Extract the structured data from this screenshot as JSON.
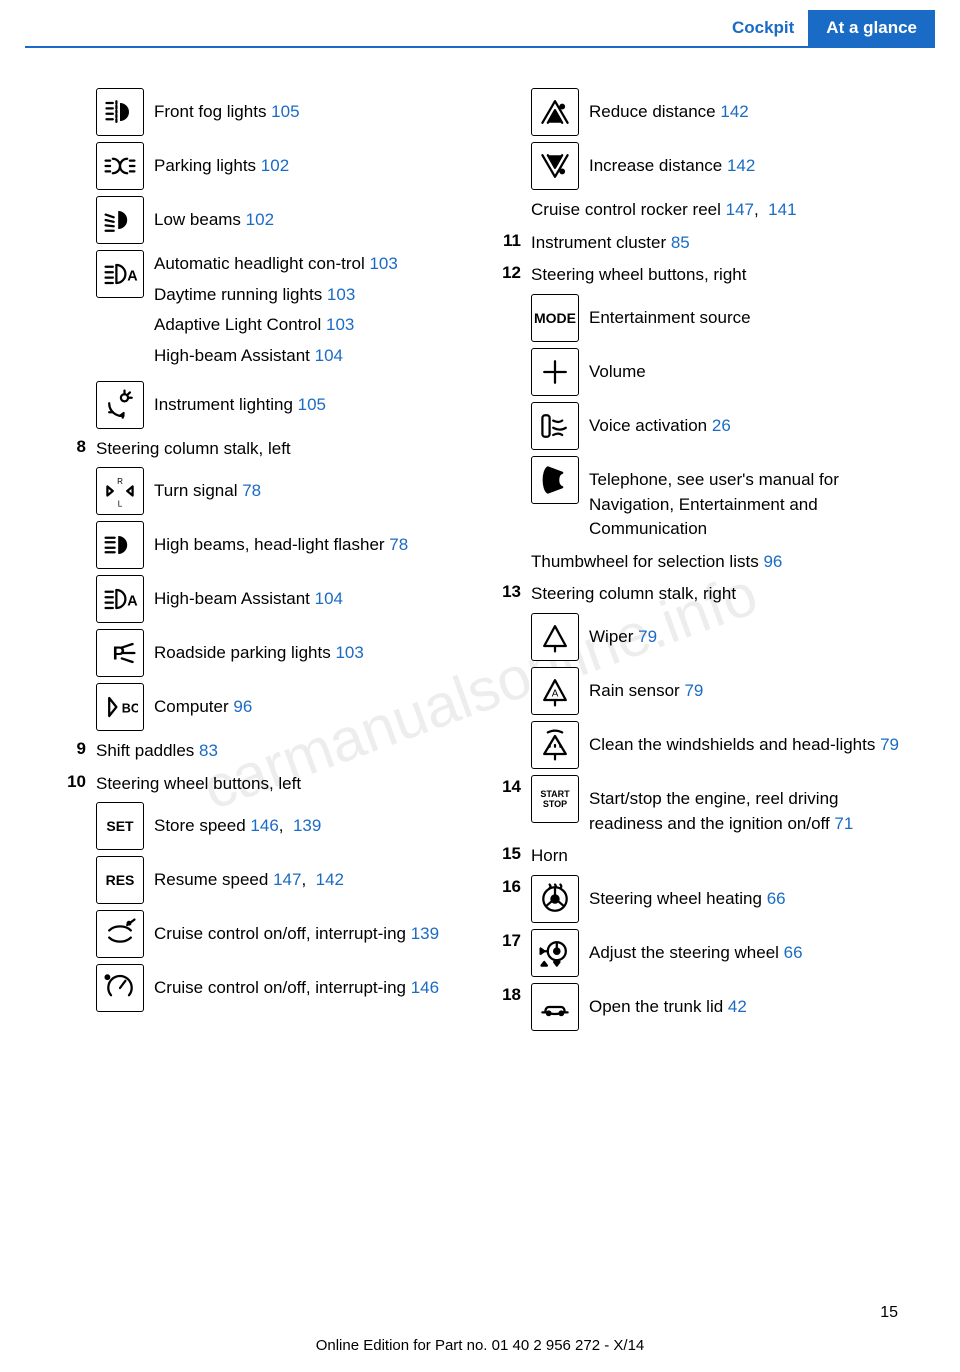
{
  "header": {
    "section": "Cockpit",
    "chapter": "At a glance"
  },
  "watermark": "carmanualsonline.info",
  "pagenum": "15",
  "footer": "Online Edition for Part no. 01 40 2 956 272 - X/14",
  "link_color": "#1a6bc5",
  "left": [
    {
      "icon": "fog",
      "text": "Front fog lights  ",
      "refs": [
        "105"
      ]
    },
    {
      "icon": "parking",
      "text": "Parking lights  ",
      "refs": [
        "102"
      ]
    },
    {
      "icon": "lowbeam",
      "text": "Low beams  ",
      "refs": [
        "102"
      ]
    },
    {
      "icon": "autoA",
      "lines": [
        {
          "text": "Automatic headlight con-trol  ",
          "refs": [
            "103"
          ]
        },
        {
          "text": "Daytime running lights  ",
          "refs": [
            "103"
          ]
        },
        {
          "text": "Adaptive Light Control  ",
          "refs": [
            "103"
          ]
        },
        {
          "text": "High-beam Assistant  ",
          "refs": [
            "104"
          ]
        }
      ]
    },
    {
      "icon": "instlight",
      "text": "Instrument lighting  ",
      "refs": [
        "105"
      ]
    },
    {
      "num": "8",
      "text": "Steering column stalk, left"
    },
    {
      "icon": "turnsig",
      "text": "Turn signal  ",
      "refs": [
        "78"
      ]
    },
    {
      "icon": "highbeam",
      "text": "High beams, head-light flasher  ",
      "refs": [
        "78"
      ]
    },
    {
      "icon": "autoA",
      "text": "High-beam Assistant  ",
      "refs": [
        "104"
      ]
    },
    {
      "icon": "roadpark",
      "text": "Roadside parking lights  ",
      "refs": [
        "103"
      ]
    },
    {
      "icon": "bc",
      "text": "Computer  ",
      "refs": [
        "96"
      ]
    },
    {
      "num": "9",
      "text": "Shift paddles  ",
      "refs": [
        "83"
      ]
    },
    {
      "num": "10",
      "text": "Steering wheel buttons, left"
    },
    {
      "icon": "set",
      "text": "Store speed  ",
      "refs": [
        "146",
        "139"
      ]
    },
    {
      "icon": "res",
      "text": "Resume speed  ",
      "refs": [
        "147",
        "142"
      ]
    },
    {
      "icon": "ccinter",
      "text": "Cruise control on/off, interrupt-ing  ",
      "refs": [
        "139"
      ]
    },
    {
      "icon": "ccinter2",
      "text": "Cruise control on/off, interrupt-ing  ",
      "refs": [
        "146"
      ]
    }
  ],
  "right": [
    {
      "icon": "reduce",
      "text": "Reduce distance  ",
      "refs": [
        "142"
      ]
    },
    {
      "icon": "increase",
      "text": "Increase distance  ",
      "refs": [
        "142"
      ]
    },
    {
      "inset": true,
      "text": "Cruise control rocker reel  ",
      "refs": [
        "147",
        "141"
      ]
    },
    {
      "num": "11",
      "text": "Instrument cluster  ",
      "refs": [
        "85"
      ]
    },
    {
      "num": "12",
      "text": "Steering wheel buttons, right"
    },
    {
      "icon": "mode",
      "text": "Entertainment source"
    },
    {
      "icon": "vol",
      "text": "Volume"
    },
    {
      "icon": "voice",
      "text": "Voice activation  ",
      "refs": [
        "26"
      ]
    },
    {
      "icon": "phone",
      "text": "Telephone, see user's manual for Navigation, Entertainment and Communication"
    },
    {
      "inset": true,
      "text": "Thumbwheel for selection lists  ",
      "refs": [
        "96"
      ]
    },
    {
      "num": "13",
      "text": "Steering column stalk, right"
    },
    {
      "icon": "wiper",
      "text": "Wiper  ",
      "refs": [
        "79"
      ]
    },
    {
      "icon": "rain",
      "text": "Rain sensor  ",
      "refs": [
        "79"
      ]
    },
    {
      "icon": "wash",
      "text": "Clean the windshields and head-lights  ",
      "refs": [
        "79"
      ]
    },
    {
      "num": "14",
      "icon": "startstop",
      "text": "Start/stop the engine, reel driving readiness and the ignition on/off  ",
      "refs": [
        "71"
      ]
    },
    {
      "num": "15",
      "text": "Horn"
    },
    {
      "num": "16",
      "icon": "steerheat",
      "text": "Steering wheel heating  ",
      "refs": [
        "66"
      ]
    },
    {
      "num": "17",
      "icon": "steeradj",
      "text": "Adjust the steering wheel  ",
      "refs": [
        "66"
      ]
    },
    {
      "num": "18",
      "icon": "trunk",
      "text": "Open the trunk lid  ",
      "refs": [
        "42"
      ]
    }
  ],
  "icon_labels": {
    "set": "SET",
    "res": "RES",
    "mode": "MODE",
    "startstop": "START\nSTOP"
  }
}
